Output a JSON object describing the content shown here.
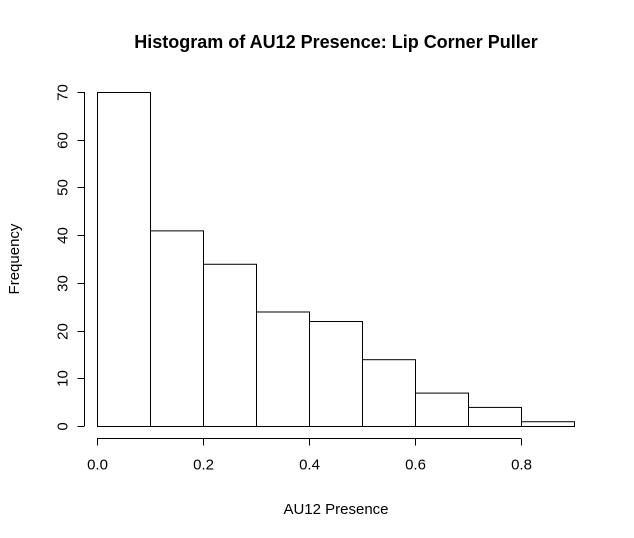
{
  "chart_data": {
    "type": "bar",
    "title": "Histogram of AU12 Presence: Lip Corner Puller",
    "xlabel": "AU12 Presence",
    "ylabel": "Frequency",
    "bins": [
      {
        "start": 0.0,
        "end": 0.1,
        "count": 70
      },
      {
        "start": 0.1,
        "end": 0.2,
        "count": 41
      },
      {
        "start": 0.2,
        "end": 0.3,
        "count": 34
      },
      {
        "start": 0.3,
        "end": 0.4,
        "count": 24
      },
      {
        "start": 0.4,
        "end": 0.5,
        "count": 22
      },
      {
        "start": 0.5,
        "end": 0.6,
        "count": 14
      },
      {
        "start": 0.6,
        "end": 0.7,
        "count": 7
      },
      {
        "start": 0.7,
        "end": 0.8,
        "count": 4
      },
      {
        "start": 0.8,
        "end": 0.9,
        "count": 1
      }
    ],
    "xlim": [
      0.0,
      0.9
    ],
    "ylim": [
      0,
      70
    ],
    "x_ticks": [
      0.0,
      0.2,
      0.4,
      0.6,
      0.8
    ],
    "x_tick_labels": [
      "0.0",
      "0.2",
      "0.4",
      "0.6",
      "0.8"
    ],
    "y_ticks": [
      0,
      10,
      20,
      30,
      40,
      50,
      60,
      70
    ],
    "y_tick_labels": [
      "0",
      "10",
      "20",
      "30",
      "40",
      "50",
      "60",
      "70"
    ],
    "grid": false,
    "legend": "none"
  }
}
